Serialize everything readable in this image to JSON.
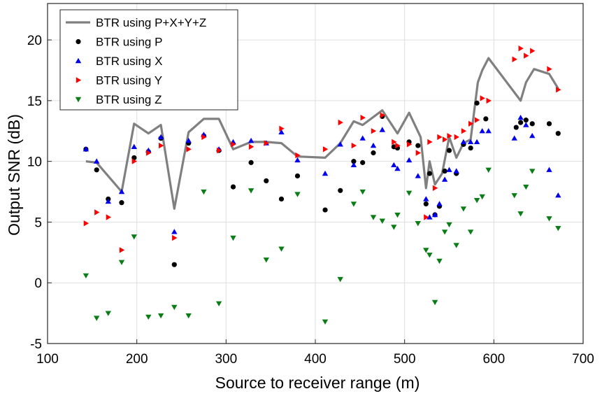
{
  "chart_data": {
    "type": "scatter",
    "xlabel": "Source to receiver range (m)",
    "ylabel": "Output SNR (dB)",
    "xlim": [
      100,
      700
    ],
    "ylim": [
      -5,
      23
    ],
    "xticks": [
      100,
      200,
      300,
      400,
      500,
      600,
      700
    ],
    "yticks": [
      -5,
      0,
      5,
      10,
      15,
      20
    ],
    "xtick_labels": [
      "100",
      "200",
      "300",
      "400",
      "500",
      "600",
      "700"
    ],
    "ytick_labels": [
      "-5",
      "0",
      "5",
      "10",
      "15",
      "20"
    ],
    "grid": true,
    "legend_position": "top-left",
    "series": [
      {
        "name": "BTR using P+X+Y+Z",
        "type": "line",
        "color": "#808080",
        "points": [
          [
            143,
            10
          ],
          [
            155,
            9.9
          ],
          [
            183,
            7.5
          ],
          [
            197,
            13.1
          ],
          [
            213,
            12.3
          ],
          [
            227,
            13
          ],
          [
            242,
            6.1
          ],
          [
            258,
            12.4
          ],
          [
            275,
            13.5
          ],
          [
            292,
            13.5
          ],
          [
            308,
            11
          ],
          [
            328,
            11.6
          ],
          [
            345,
            11.6
          ],
          [
            362,
            11.5
          ],
          [
            380,
            10.4
          ],
          [
            411,
            10.3
          ],
          [
            428,
            11.5
          ],
          [
            443,
            13.3
          ],
          [
            453,
            13
          ],
          [
            475,
            14.2
          ],
          [
            492,
            12.3
          ],
          [
            505,
            14
          ],
          [
            518,
            12
          ],
          [
            524,
            7.8
          ],
          [
            528,
            10
          ],
          [
            534,
            8.1
          ],
          [
            542,
            9
          ],
          [
            550,
            12
          ],
          [
            558,
            10.3
          ],
          [
            566,
            11.5
          ],
          [
            574,
            11.8
          ],
          [
            582,
            16.5
          ],
          [
            587,
            17.5
          ],
          [
            594,
            18.5
          ],
          [
            630,
            15
          ],
          [
            636,
            16.5
          ],
          [
            645,
            17.6
          ],
          [
            662,
            17.2
          ],
          [
            672,
            16
          ]
        ]
      },
      {
        "name": "BTR using P",
        "type": "scatter",
        "marker": "circle",
        "color": "#000000",
        "points": [
          [
            143,
            11
          ],
          [
            155,
            9.3
          ],
          [
            168,
            6.9
          ],
          [
            183,
            6.6
          ],
          [
            197,
            10.3
          ],
          [
            213,
            10.8
          ],
          [
            227,
            11.9
          ],
          [
            242,
            1.5
          ],
          [
            258,
            11.5
          ],
          [
            275,
            12.1
          ],
          [
            292,
            10.9
          ],
          [
            308,
            7.9
          ],
          [
            328,
            9.9
          ],
          [
            345,
            8.4
          ],
          [
            362,
            6.9
          ],
          [
            380,
            8.8
          ],
          [
            411,
            6
          ],
          [
            428,
            7.6
          ],
          [
            443,
            10
          ],
          [
            453,
            9.9
          ],
          [
            465,
            10.7
          ],
          [
            475,
            13.7
          ],
          [
            488,
            11.2
          ],
          [
            492,
            11.1
          ],
          [
            505,
            11.6
          ],
          [
            515,
            11.3
          ],
          [
            524,
            6.5
          ],
          [
            528,
            9
          ],
          [
            534,
            5.6
          ],
          [
            539,
            6.3
          ],
          [
            545,
            9.2
          ],
          [
            550,
            10.9
          ],
          [
            558,
            9
          ],
          [
            566,
            11.4
          ],
          [
            574,
            11.1
          ],
          [
            581,
            14.8
          ],
          [
            591,
            13.5
          ],
          [
            625,
            12.8
          ],
          [
            630,
            13.2
          ],
          [
            636,
            13.4
          ],
          [
            643,
            13.1
          ],
          [
            662,
            13.1
          ],
          [
            672,
            12.3
          ]
        ]
      },
      {
        "name": "BTR using X",
        "type": "scatter",
        "marker": "triangle-up",
        "color": "#0000ee",
        "points": [
          [
            143,
            11
          ],
          [
            155,
            10
          ],
          [
            168,
            6.7
          ],
          [
            183,
            7.5
          ],
          [
            197,
            11.2
          ],
          [
            213,
            10.9
          ],
          [
            227,
            12
          ],
          [
            242,
            4.2
          ],
          [
            258,
            11.7
          ],
          [
            275,
            12.2
          ],
          [
            292,
            11
          ],
          [
            308,
            11.6
          ],
          [
            328,
            11.7
          ],
          [
            345,
            11.5
          ],
          [
            362,
            12.4
          ],
          [
            380,
            10.1
          ],
          [
            411,
            9
          ],
          [
            428,
            11.4
          ],
          [
            443,
            9.7
          ],
          [
            453,
            11.9
          ],
          [
            465,
            11.3
          ],
          [
            475,
            12.6
          ],
          [
            488,
            9.7
          ],
          [
            492,
            9.4
          ],
          [
            505,
            10.1
          ],
          [
            515,
            8.8
          ],
          [
            524,
            6.9
          ],
          [
            528,
            5.4
          ],
          [
            534,
            5.6
          ],
          [
            539,
            6.5
          ],
          [
            545,
            8.5
          ],
          [
            550,
            9.3
          ],
          [
            558,
            9.2
          ],
          [
            566,
            11.6
          ],
          [
            574,
            11.6
          ],
          [
            581,
            11.6
          ],
          [
            587,
            12.5
          ],
          [
            594,
            12.5
          ],
          [
            623,
            11.9
          ],
          [
            630,
            13.6
          ],
          [
            636,
            13.0
          ],
          [
            643,
            12.1
          ],
          [
            662,
            9.3
          ],
          [
            672,
            7.2
          ]
        ]
      },
      {
        "name": "BTR using Y",
        "type": "scatter",
        "marker": "triangle-right",
        "color": "#ff0000",
        "points": [
          [
            143,
            4.9
          ],
          [
            155,
            5.8
          ],
          [
            168,
            5.4
          ],
          [
            183,
            2.7
          ],
          [
            197,
            10
          ],
          [
            213,
            10.7
          ],
          [
            227,
            11.3
          ],
          [
            242,
            3.7
          ],
          [
            258,
            11
          ],
          [
            275,
            12
          ],
          [
            292,
            10.9
          ],
          [
            308,
            11.4
          ],
          [
            328,
            11.2
          ],
          [
            345,
            11.5
          ],
          [
            362,
            12.7
          ],
          [
            380,
            10.5
          ],
          [
            411,
            11
          ],
          [
            428,
            13.2
          ],
          [
            443,
            11.3
          ],
          [
            453,
            13.6
          ],
          [
            465,
            12.5
          ],
          [
            475,
            13.8
          ],
          [
            488,
            11.6
          ],
          [
            492,
            11.3
          ],
          [
            505,
            11.4
          ],
          [
            515,
            10.7
          ],
          [
            524,
            5.4
          ],
          [
            528,
            11.6
          ],
          [
            534,
            7.8
          ],
          [
            539,
            12
          ],
          [
            545,
            11.8
          ],
          [
            550,
            12.1
          ],
          [
            558,
            12
          ],
          [
            566,
            12.5
          ],
          [
            574,
            13.1
          ],
          [
            581,
            13.4
          ],
          [
            587,
            15.2
          ],
          [
            594,
            15
          ],
          [
            623,
            18.4
          ],
          [
            630,
            19.3
          ],
          [
            636,
            18.7
          ],
          [
            643,
            19.1
          ],
          [
            662,
            17.6
          ],
          [
            672,
            15.9
          ]
        ]
      },
      {
        "name": "BTR using Z",
        "type": "scatter",
        "marker": "triangle-down",
        "color": "#0a7d16",
        "points": [
          [
            143,
            0.6
          ],
          [
            155,
            -2.9
          ],
          [
            168,
            -2.5
          ],
          [
            183,
            1.7
          ],
          [
            197,
            3.8
          ],
          [
            213,
            -2.8
          ],
          [
            227,
            -2.7
          ],
          [
            242,
            -2
          ],
          [
            258,
            -2.7
          ],
          [
            275,
            7.5
          ],
          [
            292,
            -1.7
          ],
          [
            308,
            3.7
          ],
          [
            328,
            7.6
          ],
          [
            345,
            1.9
          ],
          [
            362,
            2.8
          ],
          [
            380,
            7.3
          ],
          [
            411,
            -3.2
          ],
          [
            428,
            0.3
          ],
          [
            443,
            6.5
          ],
          [
            453,
            7.5
          ],
          [
            465,
            5.4
          ],
          [
            475,
            5.1
          ],
          [
            488,
            4.6
          ],
          [
            492,
            5.6
          ],
          [
            505,
            7.4
          ],
          [
            515,
            4.9
          ],
          [
            524,
            2.7
          ],
          [
            528,
            2.3
          ],
          [
            534,
            -1.6
          ],
          [
            539,
            1.8
          ],
          [
            545,
            4.2
          ],
          [
            550,
            4.8
          ],
          [
            558,
            3.1
          ],
          [
            566,
            6.1
          ],
          [
            574,
            4.2
          ],
          [
            581,
            6.8
          ],
          [
            587,
            7.1
          ],
          [
            594,
            9.3
          ],
          [
            623,
            7.2
          ],
          [
            630,
            5.7
          ],
          [
            636,
            7.9
          ],
          [
            643,
            9.2
          ],
          [
            662,
            5.3
          ],
          [
            672,
            4.5
          ]
        ]
      }
    ]
  }
}
